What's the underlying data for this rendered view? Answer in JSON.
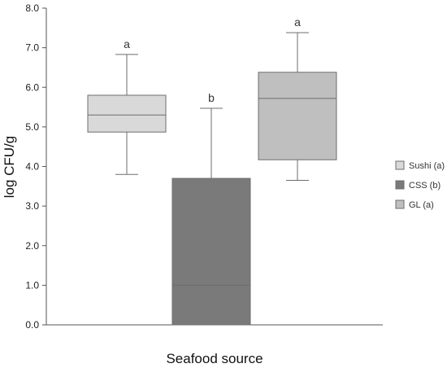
{
  "chart_data": {
    "type": "box",
    "xlabel": "Seafood source",
    "ylabel": "log CFU/g",
    "ylim": [
      0,
      8
    ],
    "yticks": [
      "0.0",
      "1.0",
      "2.0",
      "3.0",
      "4.0",
      "5.0",
      "6.0",
      "7.0",
      "8.0"
    ],
    "grid": false,
    "legend_position": "right",
    "series": [
      {
        "name": "Sushi (a)",
        "color": "#d9d9d9",
        "min": 3.8,
        "q1": 4.87,
        "median": 5.3,
        "q3": 5.8,
        "max": 6.83,
        "letter": "a"
      },
      {
        "name": "CSS (b)",
        "color": "#7a7a7a",
        "min": 0.0,
        "q1": 0.0,
        "median": 1.0,
        "q3": 3.7,
        "max": 5.47,
        "letter": "b"
      },
      {
        "name": "GL (a)",
        "color": "#bfbfbf",
        "min": 3.65,
        "q1": 4.17,
        "median": 5.72,
        "q3": 6.38,
        "max": 7.38,
        "letter": "a"
      }
    ]
  }
}
